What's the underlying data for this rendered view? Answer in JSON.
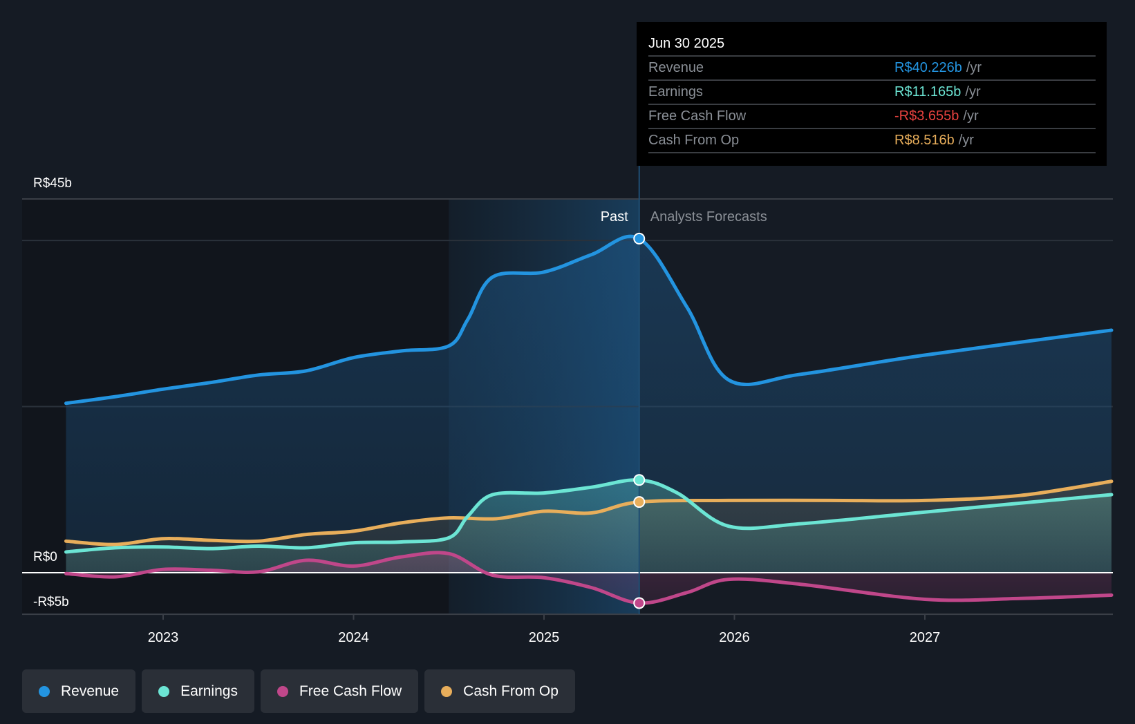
{
  "tooltip": {
    "date": "Jun 30 2025",
    "rows": [
      {
        "label": "Revenue",
        "value": "R$40.226b",
        "unit": "/yr",
        "color": "#2394e0"
      },
      {
        "label": "Earnings",
        "value": "R$11.165b",
        "unit": "/yr",
        "color": "#6ce5d4"
      },
      {
        "label": "Free Cash Flow",
        "value": "-R$3.655b",
        "unit": "/yr",
        "color": "#e8423f"
      },
      {
        "label": "Cash From Op",
        "value": "R$8.516b",
        "unit": "/yr",
        "color": "#e8ae5b"
      }
    ]
  },
  "legend": [
    {
      "label": "Revenue",
      "color": "#2394e0"
    },
    {
      "label": "Earnings",
      "color": "#6ce5d4"
    },
    {
      "label": "Free Cash Flow",
      "color": "#c0478a"
    },
    {
      "label": "Cash From Op",
      "color": "#e8ae5b"
    }
  ],
  "chart_data": {
    "type": "line",
    "title": "",
    "xlabel": "",
    "ylabel": "",
    "x_range": [
      2022.25,
      2027.98
    ],
    "ylim": [
      -5,
      45
    ],
    "y_tick_labels": [
      {
        "value": 45,
        "label": "R$45b"
      },
      {
        "value": 0,
        "label": "R$0"
      },
      {
        "value": -5,
        "label": "-R$5b"
      }
    ],
    "gridlines_at": [
      45,
      40,
      20,
      0,
      -5
    ],
    "x_ticks": [
      {
        "value": 2023,
        "label": "2023"
      },
      {
        "value": 2024,
        "label": "2024"
      },
      {
        "value": 2025,
        "label": "2025"
      },
      {
        "value": 2026,
        "label": "2026"
      },
      {
        "value": 2027,
        "label": "2027"
      }
    ],
    "past_highlight_start": 2024.5,
    "divider_at": 2025.5,
    "past_label": "Past",
    "forecast_label": "Analysts Forecasts",
    "grid": true,
    "legend_position": "bottom-left",
    "series": [
      {
        "name": "Revenue",
        "color": "#2394e0",
        "points": [
          [
            2022.49,
            20.4
          ],
          [
            2022.75,
            21.2
          ],
          [
            2023.0,
            22.1
          ],
          [
            2023.25,
            22.9
          ],
          [
            2023.5,
            23.8
          ],
          [
            2023.75,
            24.3
          ],
          [
            2024.0,
            25.9
          ],
          [
            2024.25,
            26.7
          ],
          [
            2024.5,
            27.3
          ],
          [
            2024.6,
            30.5
          ],
          [
            2024.73,
            35.6
          ],
          [
            2025.0,
            36.2
          ],
          [
            2025.25,
            38.3
          ],
          [
            2025.5,
            40.226
          ],
          [
            2025.75,
            32.0
          ],
          [
            2025.97,
            23.2
          ],
          [
            2026.35,
            23.9
          ],
          [
            2027.0,
            26.2
          ],
          [
            2027.98,
            29.2
          ]
        ]
      },
      {
        "name": "Earnings",
        "color": "#6ce5d4",
        "points": [
          [
            2022.49,
            2.5
          ],
          [
            2022.75,
            3.0
          ],
          [
            2023.0,
            3.1
          ],
          [
            2023.25,
            2.9
          ],
          [
            2023.5,
            3.2
          ],
          [
            2023.75,
            3.0
          ],
          [
            2024.0,
            3.6
          ],
          [
            2024.25,
            3.7
          ],
          [
            2024.5,
            4.2
          ],
          [
            2024.6,
            6.8
          ],
          [
            2024.73,
            9.4
          ],
          [
            2025.0,
            9.6
          ],
          [
            2025.25,
            10.3
          ],
          [
            2025.5,
            11.165
          ],
          [
            2025.7,
            9.6
          ],
          [
            2025.97,
            5.6
          ],
          [
            2026.35,
            5.9
          ],
          [
            2027.0,
            7.3
          ],
          [
            2027.98,
            9.4
          ]
        ]
      },
      {
        "name": "Free Cash Flow",
        "color": "#c0478a",
        "points": [
          [
            2022.49,
            -0.1
          ],
          [
            2022.75,
            -0.5
          ],
          [
            2023.0,
            0.4
          ],
          [
            2023.25,
            0.3
          ],
          [
            2023.5,
            0.1
          ],
          [
            2023.75,
            1.5
          ],
          [
            2024.0,
            0.8
          ],
          [
            2024.25,
            1.9
          ],
          [
            2024.5,
            2.3
          ],
          [
            2024.73,
            -0.3
          ],
          [
            2025.0,
            -0.6
          ],
          [
            2025.25,
            -1.8
          ],
          [
            2025.5,
            -3.655
          ],
          [
            2025.75,
            -2.4
          ],
          [
            2025.97,
            -0.8
          ],
          [
            2026.35,
            -1.4
          ],
          [
            2027.0,
            -3.2
          ],
          [
            2027.5,
            -3.1
          ],
          [
            2027.98,
            -2.7
          ]
        ]
      },
      {
        "name": "Cash From Op",
        "color": "#e8ae5b",
        "points": [
          [
            2022.49,
            3.8
          ],
          [
            2022.75,
            3.4
          ],
          [
            2023.0,
            4.1
          ],
          [
            2023.25,
            3.9
          ],
          [
            2023.5,
            3.8
          ],
          [
            2023.75,
            4.6
          ],
          [
            2024.0,
            5.0
          ],
          [
            2024.25,
            6.0
          ],
          [
            2024.5,
            6.6
          ],
          [
            2024.75,
            6.5
          ],
          [
            2025.0,
            7.4
          ],
          [
            2025.25,
            7.2
          ],
          [
            2025.5,
            8.516
          ],
          [
            2025.97,
            8.7
          ],
          [
            2026.5,
            8.7
          ],
          [
            2027.0,
            8.7
          ],
          [
            2027.5,
            9.3
          ],
          [
            2027.98,
            11.0
          ]
        ]
      }
    ]
  }
}
